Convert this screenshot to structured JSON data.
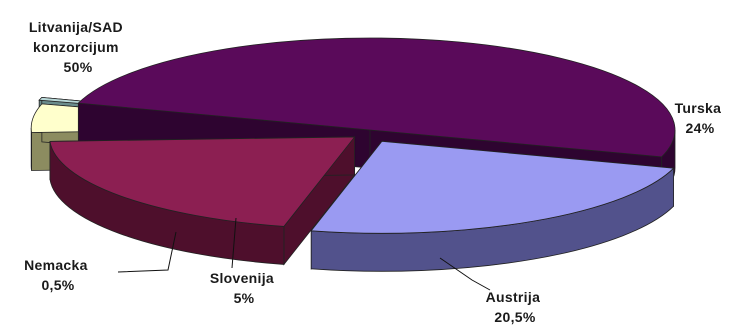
{
  "chart_data": {
    "type": "pie",
    "style": "3d-exploded",
    "categories": [
      "Litvanija/SAD konzorcijum",
      "Turska",
      "Austrija",
      "Slovenija",
      "Nemacka"
    ],
    "label_lines": [
      [
        "Litvanija/SAD",
        "konzorcijum",
        "50%"
      ],
      [
        "Turska",
        "24%"
      ],
      [
        "Austrija",
        "20,5%"
      ],
      [
        "Slovenija",
        "5%"
      ],
      [
        "Nemacka",
        "0,5%"
      ]
    ],
    "values": [
      50,
      24,
      20.5,
      5,
      0.5
    ],
    "colors": [
      "#5a0a5a",
      "#9a9af2",
      "#8c1f52",
      "#ffffcc",
      "#b8d8d8"
    ],
    "side_colors": [
      "#2e0430",
      "#52528c",
      "#4e0f2c",
      "#8c8c60",
      "#6a8c8c"
    ],
    "legend": "none"
  }
}
